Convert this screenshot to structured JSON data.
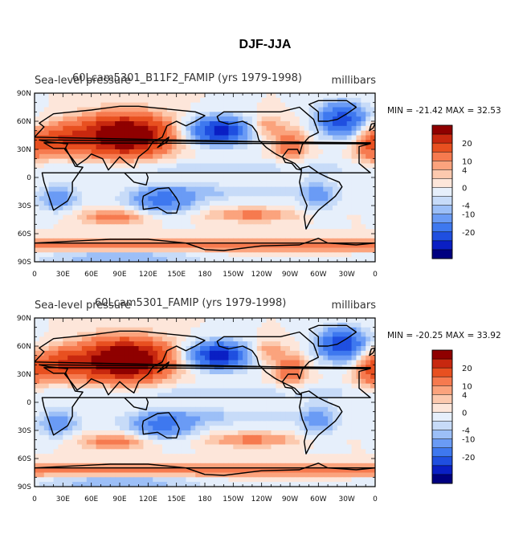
{
  "figure_title": "DJF-JJA",
  "colors": {
    "levels": [
      "#000080",
      "#0a1fc4",
      "#1f4fe0",
      "#3e78ef",
      "#6a9bf5",
      "#9cbff7",
      "#c7dbf8",
      "#e6effb",
      "#fde6da",
      "#fcc9ae",
      "#fba37d",
      "#f67a4f",
      "#e85020",
      "#c8280f",
      "#8f0000"
    ],
    "land_outline": "#000000"
  },
  "chart_data": [
    {
      "type": "heatmap",
      "title_left": "Sea-level pressure",
      "title_center": "60Lcam5301_B11F2_FAMIP (yrs 1979-1998)",
      "units": "millibars",
      "stats_text": "MIN = -21.42 MAX =  32.53",
      "min": -21.42,
      "max": 32.53,
      "x_ticks": [
        "0",
        "30E",
        "60E",
        "90E",
        "120E",
        "150E",
        "180",
        "150W",
        "120W",
        "90W",
        "60W",
        "30W",
        "0"
      ],
      "y_ticks": [
        "90N",
        "60N",
        "30N",
        "0",
        "30S",
        "60S",
        "90S"
      ],
      "colorbar_labels": [
        "20",
        "10",
        "4",
        "0",
        "-4",
        "-10",
        "-20"
      ],
      "colorbar_levels": [
        -25,
        -20,
        -15,
        -10,
        -6,
        -4,
        -2,
        0,
        2,
        4,
        6,
        10,
        15,
        20,
        25
      ]
    },
    {
      "type": "heatmap",
      "title_left": "Sea-level pressure",
      "title_center": "60Lcam5301_FAMIP (yrs 1979-1998)",
      "units": "millibars",
      "stats_text": "MIN = -20.25 MAX =  33.92",
      "min": -20.25,
      "max": 33.92,
      "x_ticks": [
        "0",
        "30E",
        "60E",
        "90E",
        "120E",
        "150E",
        "180",
        "150W",
        "120W",
        "90W",
        "60W",
        "30W",
        "0"
      ],
      "y_ticks": [
        "90N",
        "60N",
        "30N",
        "0",
        "30S",
        "60S",
        "90S"
      ],
      "colorbar_labels": [
        "20",
        "10",
        "4",
        "0",
        "-4",
        "-10",
        "-20"
      ],
      "colorbar_levels": [
        -25,
        -20,
        -15,
        -10,
        -6,
        -4,
        -2,
        0,
        2,
        4,
        6,
        10,
        15,
        20,
        25
      ]
    }
  ]
}
